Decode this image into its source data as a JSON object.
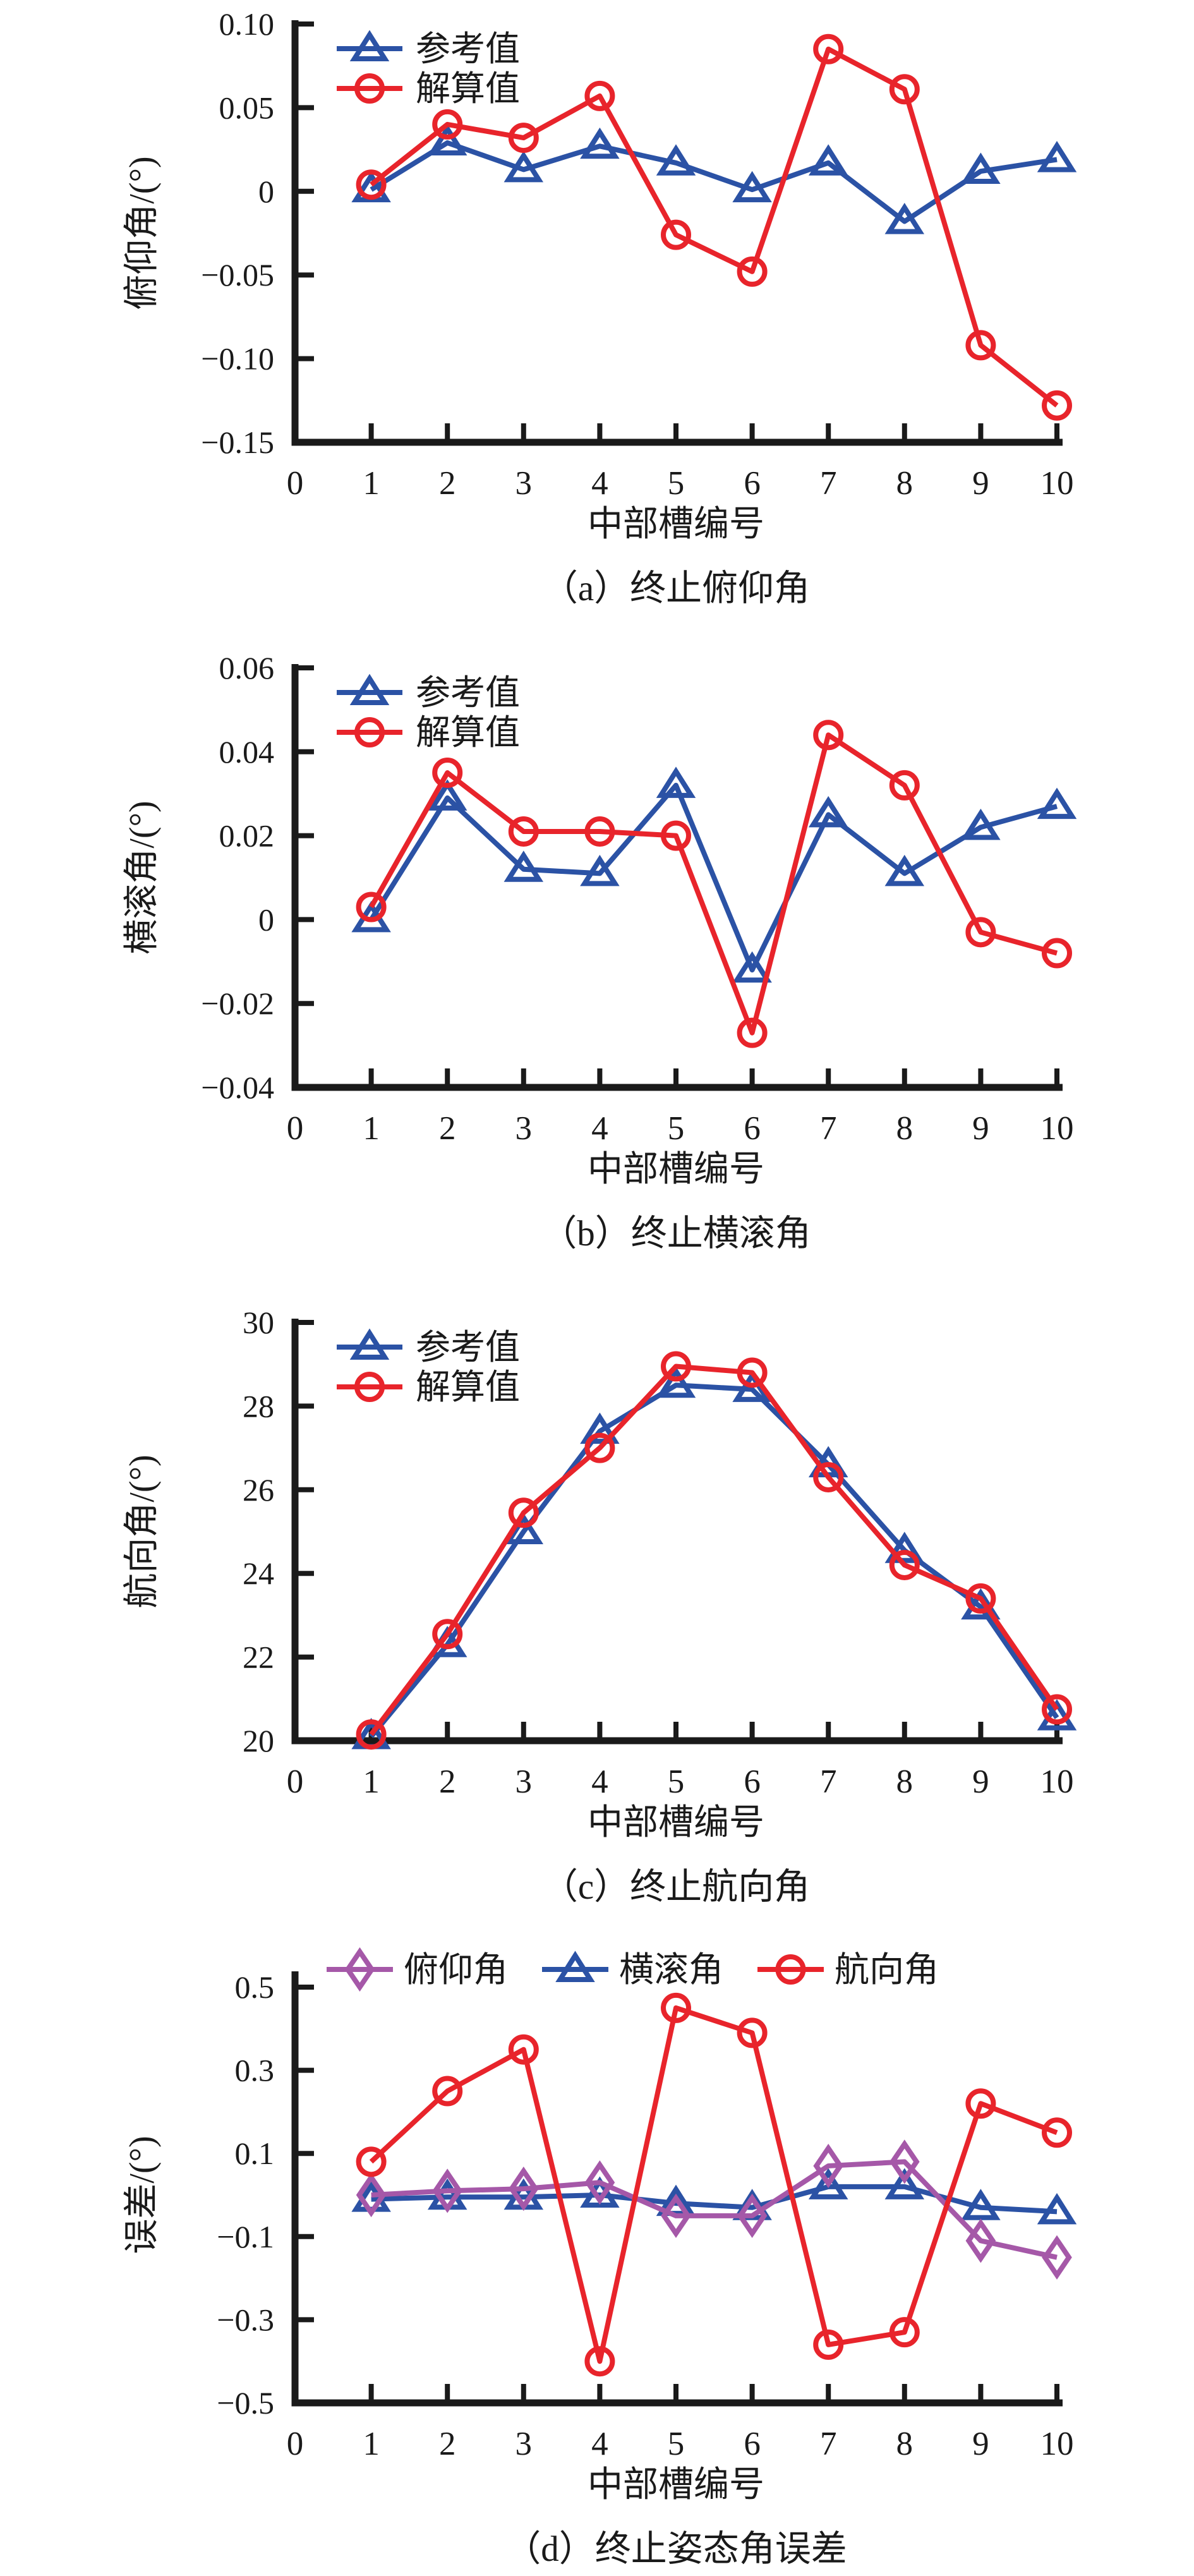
{
  "page": {
    "background": "#ffffff",
    "text_color": "#1a1a1a"
  },
  "chart_data": [
    {
      "id": "a",
      "type": "line",
      "caption": "（a）终止俯仰角",
      "xlabel": "中部槽编号",
      "ylabel": "俯仰角/(°)",
      "xlim": [
        0,
        10
      ],
      "xticks": [
        0,
        1,
        2,
        3,
        4,
        5,
        6,
        7,
        8,
        9,
        10
      ],
      "xtick_labels": [
        "0",
        "1",
        "2",
        "3",
        "4",
        "5",
        "6",
        "7",
        "8",
        "9",
        "10"
      ],
      "ylim": [
        -0.15,
        0.1
      ],
      "yticks": [
        0.1,
        0.05,
        0,
        -0.05,
        -0.1,
        -0.15
      ],
      "ytick_labels": [
        "0.10",
        "0.05",
        "0",
        "−0.05",
        "−0.10",
        "−0.15"
      ],
      "grid": false,
      "legend_position": "inside-top-left",
      "x": [
        1,
        2,
        3,
        4,
        5,
        6,
        7,
        8,
        9,
        10
      ],
      "series": [
        {
          "name": "参考值",
          "marker": "triangle",
          "color": "#2B52A5",
          "values": [
            0.001,
            0.029,
            0.013,
            0.027,
            0.017,
            0.001,
            0.017,
            -0.018,
            0.012,
            0.019
          ]
        },
        {
          "name": "解算值",
          "marker": "circle",
          "color": "#E8242B",
          "values": [
            0.004,
            0.04,
            0.032,
            0.057,
            -0.026,
            -0.048,
            0.085,
            0.061,
            -0.092,
            -0.128
          ]
        }
      ]
    },
    {
      "id": "b",
      "type": "line",
      "caption": "（b）终止横滚角",
      "xlabel": "中部槽编号",
      "ylabel": "横滚角/(°)",
      "xlim": [
        0,
        10
      ],
      "xticks": [
        0,
        1,
        2,
        3,
        4,
        5,
        6,
        7,
        8,
        9,
        10
      ],
      "xtick_labels": [
        "0",
        "1",
        "2",
        "3",
        "4",
        "5",
        "6",
        "7",
        "8",
        "9",
        "10"
      ],
      "ylim": [
        -0.04,
        0.06
      ],
      "yticks": [
        0.06,
        0.04,
        0.02,
        0,
        -0.02,
        -0.04
      ],
      "ytick_labels": [
        "0.06",
        "0.04",
        "0.02",
        "0",
        "−0.02",
        "−0.04"
      ],
      "grid": false,
      "legend_position": "inside-top-left",
      "x": [
        1,
        2,
        3,
        4,
        5,
        6,
        7,
        8,
        9,
        10
      ],
      "series": [
        {
          "name": "参考值",
          "marker": "triangle",
          "color": "#2B52A5",
          "values": [
            0.0,
            0.029,
            0.012,
            0.011,
            0.032,
            -0.012,
            0.025,
            0.011,
            0.022,
            0.027
          ]
        },
        {
          "name": "解算值",
          "marker": "circle",
          "color": "#E8242B",
          "values": [
            0.003,
            0.035,
            0.021,
            0.021,
            0.02,
            -0.027,
            0.044,
            0.032,
            -0.003,
            -0.008
          ]
        }
      ]
    },
    {
      "id": "c",
      "type": "line",
      "caption": "（c）终止航向角",
      "xlabel": "中部槽编号",
      "ylabel": "航向角/(°)",
      "xlim": [
        0,
        10
      ],
      "xticks": [
        0,
        1,
        2,
        3,
        4,
        5,
        6,
        7,
        8,
        9,
        10
      ],
      "xtick_labels": [
        "0",
        "1",
        "2",
        "3",
        "4",
        "5",
        "6",
        "7",
        "8",
        "9",
        "10"
      ],
      "ylim": [
        20,
        30
      ],
      "yticks": [
        30,
        28,
        26,
        24,
        22,
        20
      ],
      "ytick_labels": [
        "30",
        "28",
        "26",
        "24",
        "22",
        "20"
      ],
      "grid": false,
      "legend_position": "inside-top-left",
      "x": [
        1,
        2,
        3,
        4,
        5,
        6,
        7,
        8,
        9,
        10
      ],
      "series": [
        {
          "name": "参考值",
          "marker": "triangle",
          "color": "#2B52A5",
          "values": [
            20.1,
            22.3,
            25.0,
            27.4,
            28.5,
            28.4,
            26.6,
            24.55,
            23.2,
            20.55
          ]
        },
        {
          "name": "解算值",
          "marker": "circle",
          "color": "#E8242B",
          "values": [
            20.15,
            22.55,
            25.45,
            27.0,
            28.95,
            28.8,
            26.3,
            24.2,
            23.4,
            20.75
          ]
        }
      ]
    },
    {
      "id": "d",
      "type": "line",
      "caption": "（d）终止姿态角误差",
      "xlabel": "中部槽编号",
      "ylabel": "误差/(°)",
      "xlim": [
        0,
        10
      ],
      "xticks": [
        0,
        1,
        2,
        3,
        4,
        5,
        6,
        7,
        8,
        9,
        10
      ],
      "xtick_labels": [
        "0",
        "1",
        "2",
        "3",
        "4",
        "5",
        "6",
        "7",
        "8",
        "9",
        "10"
      ],
      "ylim": [
        -0.5,
        0.5
      ],
      "yticks": [
        0.5,
        0.3,
        0.1,
        -0.1,
        -0.3,
        -0.5
      ],
      "ytick_labels": [
        "0.5",
        "0.3",
        "0.1",
        "−0.1",
        "−0.3",
        "−0.5"
      ],
      "grid": false,
      "legend_position": "above-top-horizontal",
      "x": [
        1,
        2,
        3,
        4,
        5,
        6,
        7,
        8,
        9,
        10
      ],
      "series": [
        {
          "name": "俯仰角",
          "marker": "diamond",
          "color": "#A558A8",
          "values": [
            0.0,
            0.01,
            0.015,
            0.03,
            -0.05,
            -0.05,
            0.07,
            0.08,
            -0.11,
            -0.15
          ]
        },
        {
          "name": "横滚角",
          "marker": "triangle",
          "color": "#2B52A5",
          "values": [
            -0.01,
            -0.005,
            -0.005,
            0.0,
            -0.02,
            -0.03,
            0.02,
            0.02,
            -0.03,
            -0.04
          ]
        },
        {
          "name": "航向角",
          "marker": "circle",
          "color": "#E8242B",
          "values": [
            0.08,
            0.25,
            0.35,
            -0.4,
            0.45,
            0.39,
            -0.36,
            -0.33,
            0.22,
            0.15
          ]
        }
      ]
    }
  ]
}
